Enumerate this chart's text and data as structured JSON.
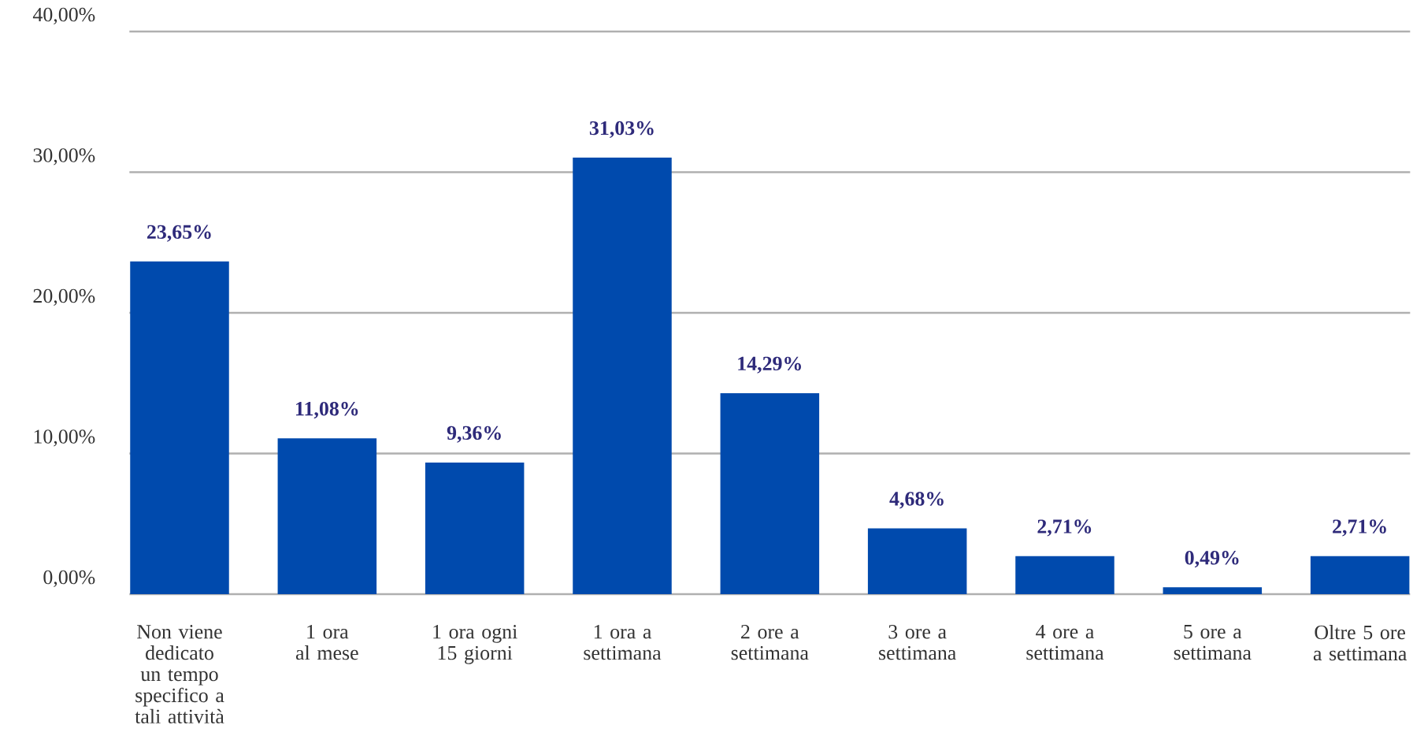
{
  "chart_data": {
    "type": "bar",
    "categories": [
      "Non viene dedicato un tempo specifico a tali attività",
      "1 ora al mese",
      "1 ora ogni 15 giorni",
      "1 ora a settimana",
      "2 ore a settimana",
      "3 ore a settimana",
      "4 ore a settimana",
      "5 ore a settimana",
      "Oltre 5 ore a settimana"
    ],
    "values": [
      23.65,
      11.08,
      9.36,
      31.03,
      14.29,
      4.68,
      2.71,
      0.49,
      2.71
    ],
    "value_labels": [
      "23,65%",
      "11,08%",
      "9,36%",
      "31,03%",
      "14,29%",
      "4,68%",
      "2,71%",
      "0,49%",
      "2,71%"
    ],
    "color": "#004aad",
    "ylim": [
      0,
      40
    ],
    "yticks": [
      {
        "value": 0,
        "label": "0,00%"
      },
      {
        "value": 10,
        "label": "10,00%"
      },
      {
        "value": 20,
        "label": "20,00%"
      },
      {
        "value": 30,
        "label": "30,00%"
      },
      {
        "value": 40,
        "label": "40,00%"
      }
    ],
    "grid": "y"
  }
}
